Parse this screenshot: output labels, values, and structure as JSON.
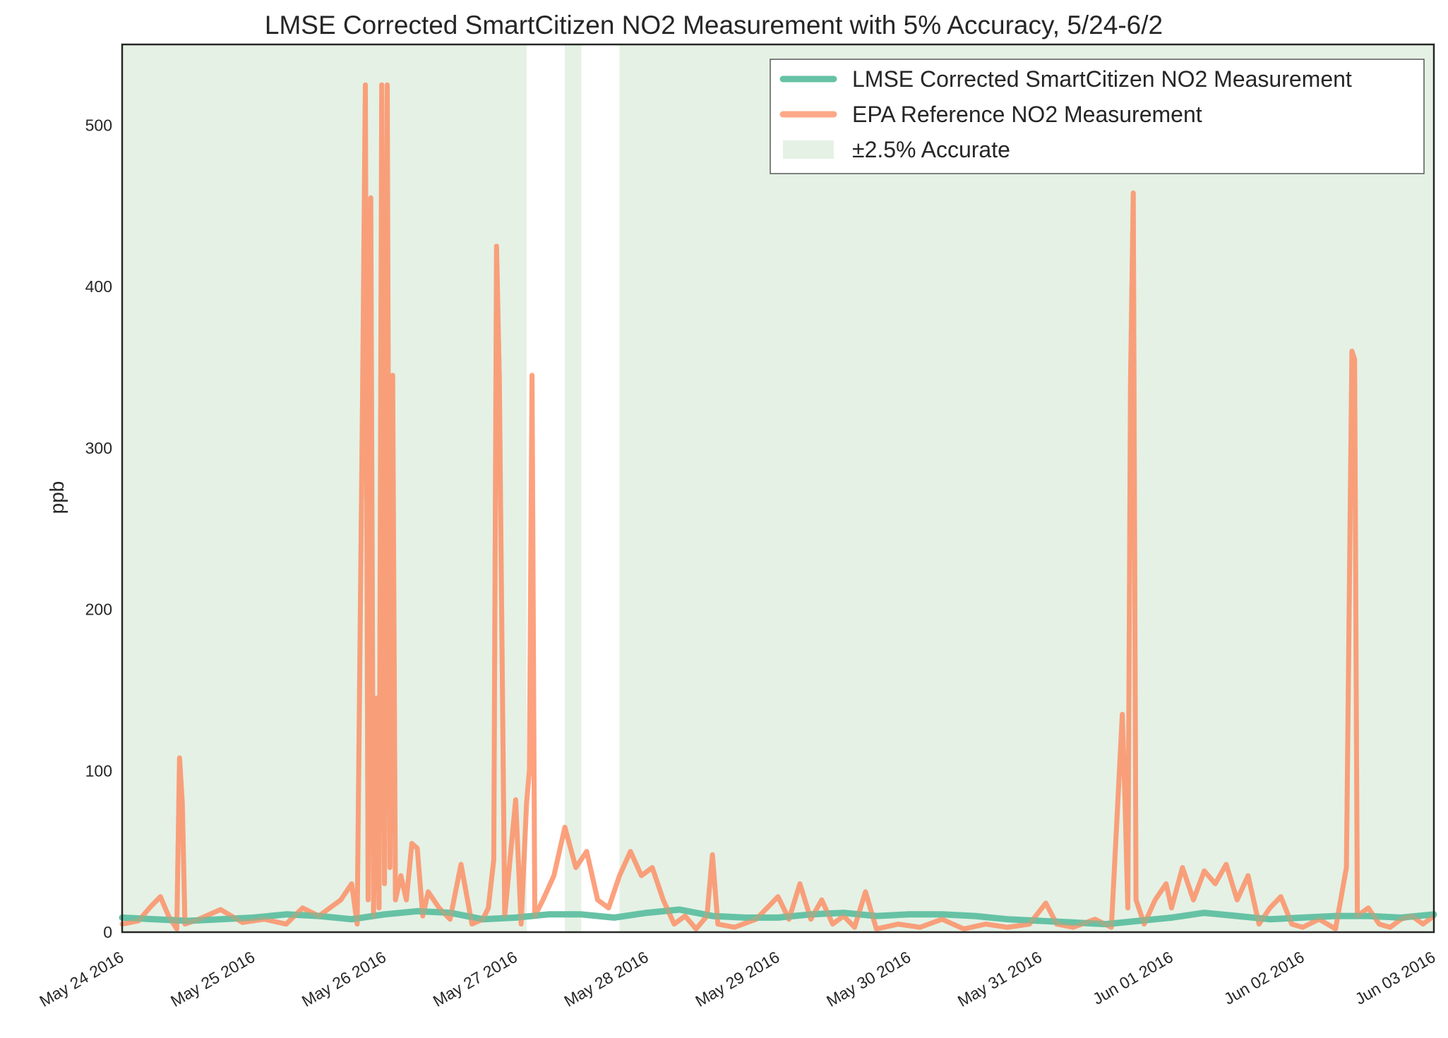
{
  "chart_data": {
    "type": "line",
    "title": "LMSE Corrected SmartCitizen NO2 Measurement with 5% Accuracy, 5/24-6/2",
    "xlabel": "",
    "ylabel": "ppb",
    "x_range": [
      "2016-05-24",
      "2016-06-03"
    ],
    "ylim": [
      0,
      550
    ],
    "y_ticks": [
      0,
      100,
      200,
      300,
      400,
      500
    ],
    "y_tick_labels": [
      "0",
      "100",
      "200",
      "300",
      "400",
      "500"
    ],
    "x_ticks": [
      "2016-05-24",
      "2016-05-25",
      "2016-05-26",
      "2016-05-27",
      "2016-05-28",
      "2016-05-29",
      "2016-05-30",
      "2016-05-31",
      "2016-06-01",
      "2016-06-02",
      "2016-06-03"
    ],
    "x_tick_labels": [
      "May 24 2016",
      "May 25 2016",
      "May 26 2016",
      "May 27 2016",
      "May 28 2016",
      "May 29 2016",
      "May 30 2016",
      "May 31 2016",
      "Jun 01 2016",
      "Jun 02 2016",
      "Jun 03 2016"
    ],
    "grid": false,
    "legend_position": "top-right",
    "legend": [
      {
        "label": "LMSE Corrected SmartCitizen NO2 Measurement",
        "color": "#66c2a5",
        "kind": "line"
      },
      {
        "label": "EPA Reference NO2 Measurement",
        "color": "#fc8d62",
        "kind": "line"
      },
      {
        "label": "±2.5% Accurate",
        "color": "#e5f1e5",
        "kind": "patch"
      }
    ],
    "accuracy_band": {
      "name": "±2.5% Accurate",
      "color": "#e5f1e5",
      "covered_intervals": [
        [
          "2016-05-24T00:00",
          "2016-05-27T02:00"
        ],
        [
          "2016-05-27T09:00",
          "2016-05-27T12:00"
        ],
        [
          "2016-05-27T19:00",
          "2016-06-03T00:00"
        ]
      ]
    },
    "series": [
      {
        "name": "LMSE Corrected SmartCitizen NO2 Measurement",
        "color": "#66c2a5",
        "points": [
          [
            "2016-05-24T00:00",
            9
          ],
          [
            "2016-05-24T06:00",
            8
          ],
          [
            "2016-05-24T12:00",
            7
          ],
          [
            "2016-05-24T18:00",
            8
          ],
          [
            "2016-05-25T00:00",
            9
          ],
          [
            "2016-05-25T06:00",
            11
          ],
          [
            "2016-05-25T12:00",
            10
          ],
          [
            "2016-05-25T18:00",
            8
          ],
          [
            "2016-05-26T00:00",
            11
          ],
          [
            "2016-05-26T06:00",
            13
          ],
          [
            "2016-05-26T12:00",
            12
          ],
          [
            "2016-05-26T18:00",
            8
          ],
          [
            "2016-05-27T00:00",
            9
          ],
          [
            "2016-05-27T06:00",
            11
          ],
          [
            "2016-05-27T12:00",
            11
          ],
          [
            "2016-05-27T18:00",
            9
          ],
          [
            "2016-05-28T00:00",
            12
          ],
          [
            "2016-05-28T06:00",
            14
          ],
          [
            "2016-05-28T12:00",
            10
          ],
          [
            "2016-05-28T18:00",
            9
          ],
          [
            "2016-05-29T00:00",
            9
          ],
          [
            "2016-05-29T06:00",
            11
          ],
          [
            "2016-05-29T12:00",
            12
          ],
          [
            "2016-05-29T18:00",
            10
          ],
          [
            "2016-05-30T00:00",
            11
          ],
          [
            "2016-05-30T06:00",
            11
          ],
          [
            "2016-05-30T12:00",
            10
          ],
          [
            "2016-05-30T18:00",
            8
          ],
          [
            "2016-05-31T00:00",
            7
          ],
          [
            "2016-05-31T06:00",
            6
          ],
          [
            "2016-05-31T12:00",
            5
          ],
          [
            "2016-05-31T18:00",
            7
          ],
          [
            "2016-06-01T00:00",
            9
          ],
          [
            "2016-06-01T06:00",
            12
          ],
          [
            "2016-06-01T12:00",
            10
          ],
          [
            "2016-06-01T18:00",
            8
          ],
          [
            "2016-06-02T00:00",
            9
          ],
          [
            "2016-06-02T06:00",
            10
          ],
          [
            "2016-06-02T12:00",
            10
          ],
          [
            "2016-06-02T18:00",
            9
          ],
          [
            "2016-06-03T00:00",
            11
          ]
        ]
      },
      {
        "name": "EPA Reference NO2 Measurement",
        "color": "#fc8d62",
        "points": [
          [
            "2016-05-24T00:00",
            5
          ],
          [
            "2016-05-24T03:00",
            7
          ],
          [
            "2016-05-24T05:00",
            15
          ],
          [
            "2016-05-24T07:00",
            22
          ],
          [
            "2016-05-24T08:30",
            10
          ],
          [
            "2016-05-24T10:00",
            2
          ],
          [
            "2016-05-24T10:30",
            108
          ],
          [
            "2016-05-24T11:00",
            80
          ],
          [
            "2016-05-24T11:30",
            5
          ],
          [
            "2016-05-24T14:00",
            8
          ],
          [
            "2016-05-24T18:00",
            14
          ],
          [
            "2016-05-24T22:00",
            6
          ],
          [
            "2016-05-25T02:00",
            8
          ],
          [
            "2016-05-25T06:00",
            5
          ],
          [
            "2016-05-25T09:00",
            15
          ],
          [
            "2016-05-25T12:00",
            10
          ],
          [
            "2016-05-25T16:00",
            20
          ],
          [
            "2016-05-25T18:00",
            30
          ],
          [
            "2016-05-25T19:00",
            5
          ],
          [
            "2016-05-25T20:00",
            335
          ],
          [
            "2016-05-25T20:30",
            525
          ],
          [
            "2016-05-25T21:00",
            20
          ],
          [
            "2016-05-25T21:30",
            455
          ],
          [
            "2016-05-25T22:00",
            10
          ],
          [
            "2016-05-25T22:30",
            145
          ],
          [
            "2016-05-25T23:00",
            15
          ],
          [
            "2016-05-25T23:30",
            525
          ],
          [
            "2016-05-26T00:00",
            30
          ],
          [
            "2016-05-26T00:30",
            525
          ],
          [
            "2016-05-26T01:00",
            40
          ],
          [
            "2016-05-26T01:30",
            345
          ],
          [
            "2016-05-26T02:00",
            20
          ],
          [
            "2016-05-26T03:00",
            35
          ],
          [
            "2016-05-26T04:00",
            20
          ],
          [
            "2016-05-26T05:00",
            55
          ],
          [
            "2016-05-26T06:00",
            52
          ],
          [
            "2016-05-26T07:00",
            10
          ],
          [
            "2016-05-26T08:00",
            25
          ],
          [
            "2016-05-26T10:00",
            15
          ],
          [
            "2016-05-26T12:00",
            8
          ],
          [
            "2016-05-26T14:00",
            42
          ],
          [
            "2016-05-26T16:00",
            5
          ],
          [
            "2016-05-26T18:00",
            8
          ],
          [
            "2016-05-26T19:00",
            15
          ],
          [
            "2016-05-26T20:00",
            45
          ],
          [
            "2016-05-26T20:30",
            425
          ],
          [
            "2016-05-26T21:00",
            345
          ],
          [
            "2016-05-26T22:00",
            10
          ],
          [
            "2016-05-27T00:00",
            82
          ],
          [
            "2016-05-27T01:00",
            5
          ],
          [
            "2016-05-27T02:00",
            80
          ],
          [
            "2016-05-27T02:30",
            100
          ],
          [
            "2016-05-27T03:00",
            345
          ],
          [
            "2016-05-27T03:30",
            10
          ],
          [
            "2016-05-27T05:00",
            20
          ],
          [
            "2016-05-27T07:00",
            35
          ],
          [
            "2016-05-27T09:00",
            65
          ],
          [
            "2016-05-27T11:00",
            40
          ],
          [
            "2016-05-27T13:00",
            50
          ],
          [
            "2016-05-27T15:00",
            20
          ],
          [
            "2016-05-27T17:00",
            15
          ],
          [
            "2016-05-27T19:00",
            35
          ],
          [
            "2016-05-27T21:00",
            50
          ],
          [
            "2016-05-27T23:00",
            35
          ],
          [
            "2016-05-28T01:00",
            40
          ],
          [
            "2016-05-28T03:00",
            20
          ],
          [
            "2016-05-28T05:00",
            5
          ],
          [
            "2016-05-28T07:00",
            10
          ],
          [
            "2016-05-28T09:00",
            2
          ],
          [
            "2016-05-28T11:00",
            10
          ],
          [
            "2016-05-28T12:00",
            48
          ],
          [
            "2016-05-28T13:00",
            5
          ],
          [
            "2016-05-28T16:00",
            3
          ],
          [
            "2016-05-28T20:00",
            8
          ],
          [
            "2016-05-29T00:00",
            22
          ],
          [
            "2016-05-29T02:00",
            8
          ],
          [
            "2016-05-29T04:00",
            30
          ],
          [
            "2016-05-29T06:00",
            8
          ],
          [
            "2016-05-29T08:00",
            20
          ],
          [
            "2016-05-29T10:00",
            5
          ],
          [
            "2016-05-29T12:00",
            10
          ],
          [
            "2016-05-29T14:00",
            3
          ],
          [
            "2016-05-29T16:00",
            25
          ],
          [
            "2016-05-29T18:00",
            2
          ],
          [
            "2016-05-29T22:00",
            5
          ],
          [
            "2016-05-30T02:00",
            3
          ],
          [
            "2016-05-30T06:00",
            8
          ],
          [
            "2016-05-30T10:00",
            2
          ],
          [
            "2016-05-30T14:00",
            5
          ],
          [
            "2016-05-30T18:00",
            3
          ],
          [
            "2016-05-30T22:00",
            5
          ],
          [
            "2016-05-31T01:00",
            18
          ],
          [
            "2016-05-31T03:00",
            5
          ],
          [
            "2016-05-31T06:00",
            3
          ],
          [
            "2016-05-31T10:00",
            8
          ],
          [
            "2016-05-31T13:00",
            3
          ],
          [
            "2016-05-31T15:00",
            135
          ],
          [
            "2016-05-31T15:30",
            80
          ],
          [
            "2016-05-31T16:00",
            15
          ],
          [
            "2016-05-31T16:30",
            340
          ],
          [
            "2016-05-31T17:00",
            458
          ],
          [
            "2016-05-31T17:30",
            20
          ],
          [
            "2016-05-31T19:00",
            5
          ],
          [
            "2016-05-31T21:00",
            20
          ],
          [
            "2016-05-31T23:00",
            30
          ],
          [
            "2016-06-01T00:00",
            15
          ],
          [
            "2016-06-01T02:00",
            40
          ],
          [
            "2016-06-01T04:00",
            20
          ],
          [
            "2016-06-01T06:00",
            38
          ],
          [
            "2016-06-01T08:00",
            30
          ],
          [
            "2016-06-01T10:00",
            42
          ],
          [
            "2016-06-01T12:00",
            20
          ],
          [
            "2016-06-01T14:00",
            35
          ],
          [
            "2016-06-01T16:00",
            5
          ],
          [
            "2016-06-01T18:00",
            15
          ],
          [
            "2016-06-01T20:00",
            22
          ],
          [
            "2016-06-01T22:00",
            5
          ],
          [
            "2016-06-02T00:00",
            3
          ],
          [
            "2016-06-02T03:00",
            8
          ],
          [
            "2016-06-02T06:00",
            2
          ],
          [
            "2016-06-02T08:00",
            40
          ],
          [
            "2016-06-02T09:00",
            360
          ],
          [
            "2016-06-02T09:30",
            355
          ],
          [
            "2016-06-02T10:00",
            10
          ],
          [
            "2016-06-02T12:00",
            15
          ],
          [
            "2016-06-02T14:00",
            5
          ],
          [
            "2016-06-02T16:00",
            3
          ],
          [
            "2016-06-02T18:00",
            8
          ],
          [
            "2016-06-02T20:00",
            10
          ],
          [
            "2016-06-02T22:00",
            5
          ],
          [
            "2016-06-03T00:00",
            10
          ]
        ]
      }
    ]
  }
}
